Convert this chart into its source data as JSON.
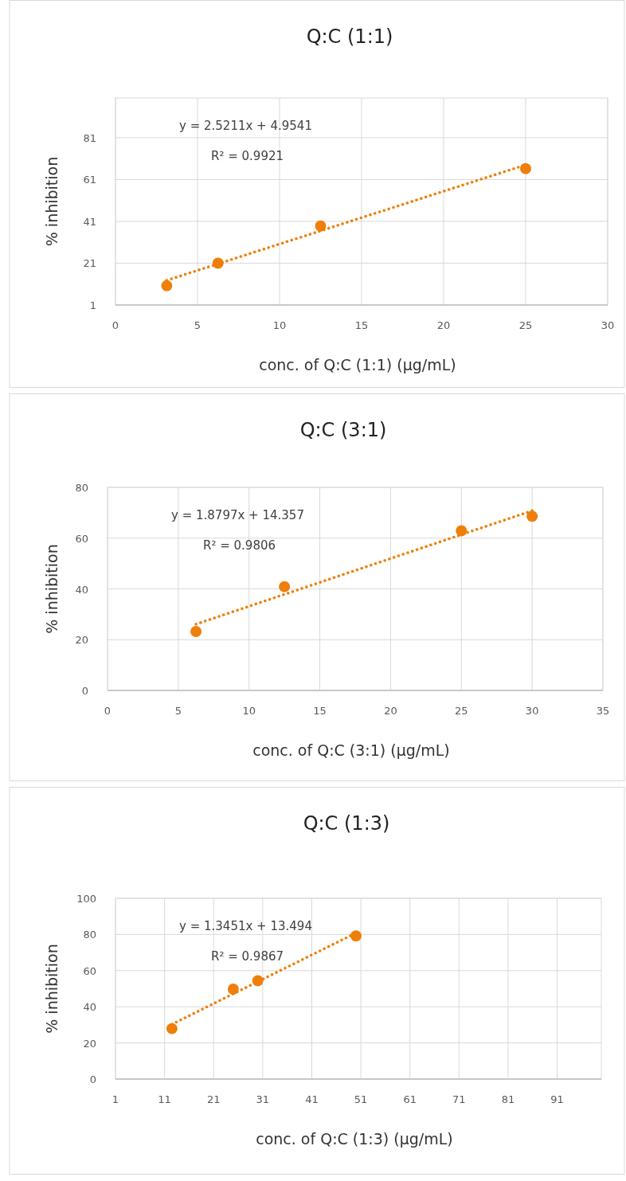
{
  "chart_data": [
    {
      "type": "scatter",
      "title": "Q:C (1:1)",
      "xlabel": "conc. of Q:C (1:1) (μg/mL)",
      "ylabel": "% inhibition",
      "xlim": [
        0,
        30
      ],
      "xticks": [
        0,
        5,
        10,
        15,
        20,
        25,
        30
      ],
      "ylim": [
        1,
        100
      ],
      "yticks": [
        1,
        21,
        41,
        61,
        81
      ],
      "grid": true,
      "marker": "circle",
      "annotations": [
        "y = 2.5211x + 4.9541",
        "R² = 0.9921"
      ],
      "series": [
        {
          "color": "#ef7f0b",
          "x": [
            3.125,
            6.25,
            12.5,
            25
          ],
          "values": [
            10.2,
            21,
            38.8,
            66.2
          ]
        },
        {
          "type": "line",
          "color": "#ef7f0b",
          "line_style": "dotted",
          "marker": "none",
          "x": [
            3.125,
            25
          ],
          "values": [
            12.8,
            68.0
          ]
        }
      ]
    },
    {
      "type": "scatter",
      "title": "Q:C (3:1)",
      "xlabel": "conc. of Q:C (3:1) (μg/mL)",
      "ylabel": "% inhibition",
      "xlim": [
        0,
        35
      ],
      "xticks": [
        0,
        5,
        10,
        15,
        20,
        25,
        30,
        35
      ],
      "ylim": [
        0,
        80
      ],
      "yticks": [
        0,
        20,
        40,
        60,
        80
      ],
      "grid": true,
      "marker": "circle",
      "annotations": [
        "y = 1.8797x + 14.357",
        "R² = 0.9806"
      ],
      "series": [
        {
          "color": "#ef7f0b",
          "x": [
            6.25,
            12.5,
            25,
            30
          ],
          "values": [
            23.2,
            40.9,
            62.9,
            68.6
          ]
        },
        {
          "type": "line",
          "color": "#ef7f0b",
          "line_style": "dotted",
          "marker": "none",
          "x": [
            6.25,
            30
          ],
          "values": [
            26.1,
            70.8
          ]
        }
      ]
    },
    {
      "type": "scatter",
      "title": "Q:C (1:3)",
      "xlabel": "conc. of Q:C (1:3) (μg/mL)",
      "ylabel": "% inhibition",
      "xlim": [
        1,
        100
      ],
      "xticks": [
        1,
        11,
        21,
        31,
        41,
        51,
        61,
        71,
        81,
        91
      ],
      "ylim": [
        0,
        100
      ],
      "yticks": [
        0,
        20,
        40,
        60,
        80,
        100
      ],
      "grid": true,
      "marker": "circle",
      "annotations": [
        "y = 1.3451x + 13.494",
        "R² = 0.9867"
      ],
      "series": [
        {
          "color": "#ef7f0b",
          "x": [
            12.5,
            25,
            30,
            50
          ],
          "values": [
            27.9,
            49.8,
            54.4,
            79.2
          ]
        },
        {
          "type": "line",
          "color": "#ef7f0b",
          "line_style": "dotted",
          "marker": "none",
          "x": [
            12.5,
            50
          ],
          "values": [
            30.3,
            80.8
          ]
        }
      ]
    }
  ]
}
